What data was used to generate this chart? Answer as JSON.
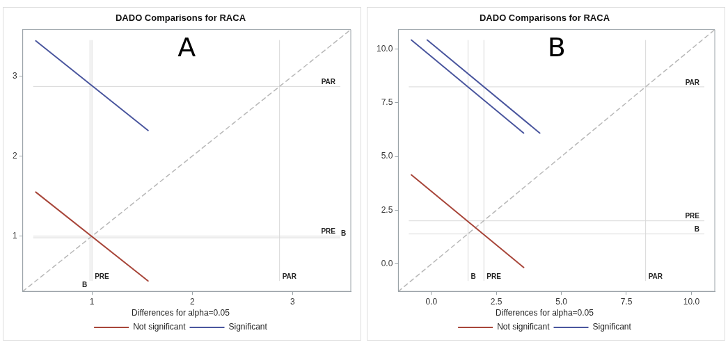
{
  "chart_data": [
    {
      "type": "line",
      "title": "DADO Comparisons for RACA",
      "annotations": [
        "A"
      ],
      "legend": "bottom",
      "legend_title": "Differences for alpha=0.05",
      "marker": "none",
      "grid": false,
      "xlim": [
        0.31,
        3.58
      ],
      "ylim": [
        0.31,
        3.58
      ],
      "xticks": [
        1,
        2,
        3
      ],
      "yticks": [
        1,
        2,
        3
      ],
      "series": [
        {
          "name": "Not significant",
          "color": "#a8463a",
          "x": [
            0.44,
            1.56
          ],
          "values": [
            1.55,
            0.44
          ]
        },
        {
          "name": "Significant",
          "color": "#4a569e",
          "x": [
            0.44,
            1.56
          ],
          "values": [
            3.44,
            2.32
          ]
        },
        {
          "color": "#b8b8b8",
          "line_style": "dashed",
          "x": [
            0.31,
            3.58
          ],
          "values": [
            0.31,
            3.58
          ]
        }
      ],
      "ref_lines": [
        {
          "axis": "x",
          "value": 1,
          "label": "PRE"
        },
        {
          "axis": "x",
          "value": 0.98,
          "label": "B"
        },
        {
          "axis": "x",
          "value": 2.87,
          "label": "PAR"
        },
        {
          "axis": "y",
          "value": 2.87,
          "label": "PAR"
        },
        {
          "axis": "y",
          "value": 1,
          "label": "PRE"
        },
        {
          "axis": "y",
          "value": 0.98,
          "label": "B"
        }
      ]
    },
    {
      "type": "line",
      "title": "DADO Comparisons for RACA",
      "annotations": [
        "B"
      ],
      "legend": "bottom",
      "legend_title": "Differences for alpha=0.05",
      "marker": "none",
      "grid": false,
      "xlim": [
        -1.27,
        10.9
      ],
      "ylim": [
        -1.27,
        10.9
      ],
      "xticks": [
        {
          "value": 0,
          "label": "0.0"
        },
        2.5,
        {
          "value": 5,
          "label": "5.0"
        },
        7.5,
        {
          "value": 10,
          "label": "10.0"
        }
      ],
      "yticks": [
        {
          "value": 0,
          "label": "0.0"
        },
        2.5,
        {
          "value": 5,
          "label": "5.0"
        },
        7.5,
        {
          "value": 10,
          "label": "10.0"
        }
      ],
      "series": [
        {
          "name": "Not significant",
          "color": "#a8463a",
          "x": [
            -0.77,
            3.55
          ],
          "values": [
            4.15,
            -0.16
          ]
        },
        {
          "name": "Significant",
          "color": "#4a569e",
          "x": [
            -0.77,
            3.55
          ],
          "values": [
            10.42,
            6.09
          ]
        },
        {
          "color": "#4a569e",
          "x": [
            -0.16,
            4.17
          ],
          "values": [
            10.42,
            6.09
          ]
        },
        {
          "color": "#b8b8b8",
          "line_style": "dashed",
          "x": [
            -1.27,
            10.9
          ],
          "values": [
            -1.27,
            10.9
          ]
        }
      ],
      "ref_lines": [
        {
          "axis": "x",
          "value": 1.41,
          "label": "B"
        },
        {
          "axis": "x",
          "value": 2.02,
          "label": "PRE"
        },
        {
          "axis": "x",
          "value": 8.24,
          "label": "PAR"
        },
        {
          "axis": "y",
          "value": 8.24,
          "label": "PAR"
        },
        {
          "axis": "y",
          "value": 2.01,
          "label": "PRE"
        },
        {
          "axis": "y",
          "value": 1.4,
          "label": "B"
        }
      ]
    }
  ]
}
